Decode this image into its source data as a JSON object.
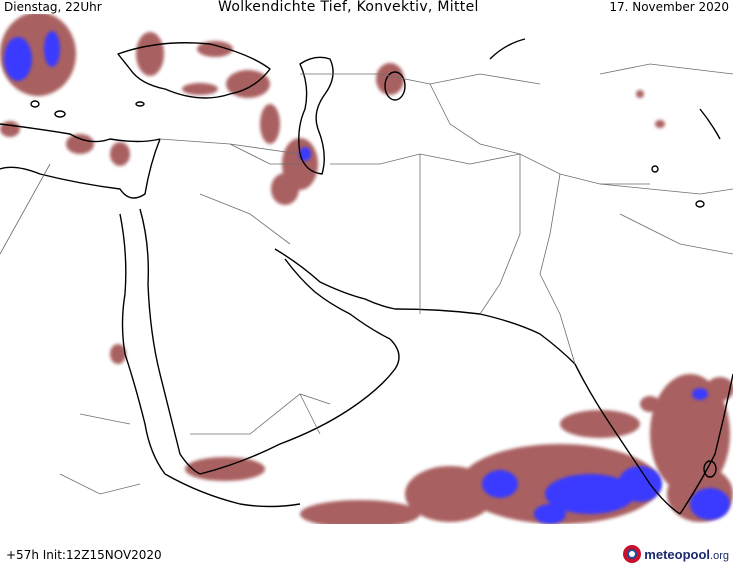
{
  "header": {
    "left": "Dienstag, 22Uhr",
    "center": "Wolkendichte   Tief, Konvektiv, Mittel",
    "right": "17. November 2020"
  },
  "footer": {
    "run": "+57h Init:12Z15NOV2020",
    "logo_name": "meteopool",
    "logo_tld": ".org"
  },
  "colors": {
    "cloud_low": "#a0504f",
    "cloud_mid": "#7a3b3b",
    "cloud_convective": "#3a3aff",
    "coast": "#000000",
    "border": "#6e6e6e",
    "background": "#ffffff"
  }
}
